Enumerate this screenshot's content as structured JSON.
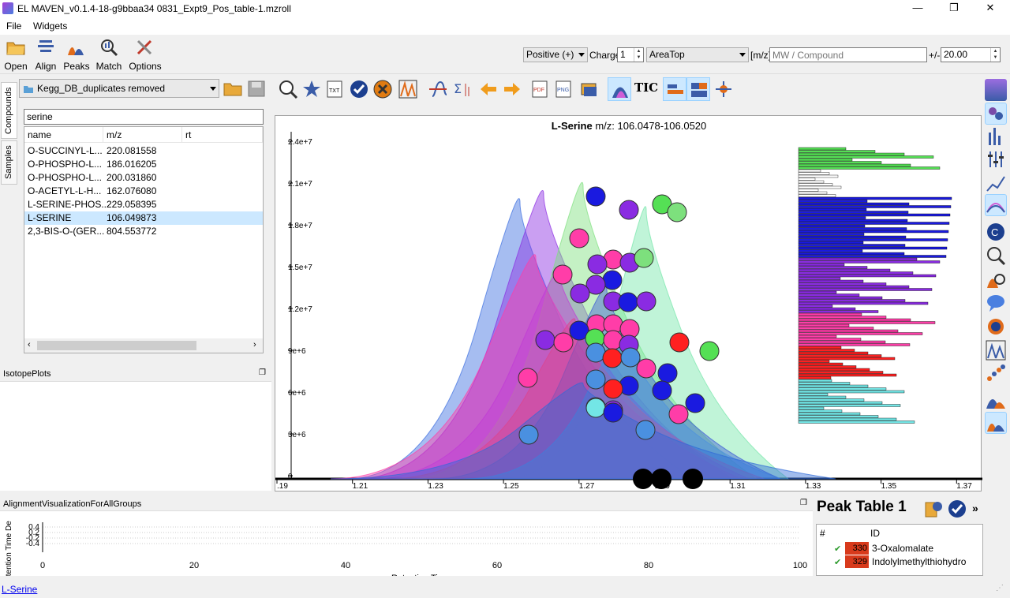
{
  "window": {
    "title": "EL MAVEN_v0.1.4-18-g9bbaa34 0831_Expt9_Pos_table-1.mzroll",
    "min": "—",
    "restore": "❐",
    "close": "✕"
  },
  "menu": [
    "File",
    "Widgets"
  ],
  "toolbar": {
    "buttons": [
      "Open",
      "Align",
      "Peaks",
      "Match",
      "Options"
    ]
  },
  "controls": {
    "polarity": "Positive (+)",
    "charge_label": "Charge",
    "charge_value": "1",
    "quant_type": "AreaTop",
    "mz_label": "[m/z]",
    "search_placeholder": "MW / Compound",
    "tol_label": "+/-",
    "tol_value": "20.00"
  },
  "left": {
    "tabs": [
      "Compounds",
      "Samples"
    ],
    "database": "Kegg_DB_duplicates removed",
    "filter_value": "serine",
    "columns": [
      "name",
      "m/z",
      "rt"
    ],
    "rows": [
      {
        "name": "O-SUCCINYL-L...",
        "mz": "220.081558"
      },
      {
        "name": "O-PHOSPHO-L...",
        "mz": "186.016205"
      },
      {
        "name": "O-PHOSPHO-L...",
        "mz": "200.031860"
      },
      {
        "name": "O-ACETYL-L-H...",
        "mz": "162.076080"
      },
      {
        "name": "L-SERINE-PHOS...",
        "mz": "229.058395"
      },
      {
        "name": "L-SERINE",
        "mz": "106.049873"
      },
      {
        "name": "2,3-BIS-O-(GER...",
        "mz": "804.553772"
      }
    ],
    "selected_index": 5
  },
  "isotope": {
    "title": "IsotopePlots"
  },
  "eic": {
    "title_compound": "L-Serine",
    "title_range": " m/z: 106.0478-106.0520",
    "tic_label": "TIC",
    "y_ticks": [
      "2.4e+7",
      "2.1e+7",
      "1.8e+7",
      "1.5e+7",
      "1.2e+7",
      "9e+6",
      "6e+6",
      "3e+6",
      "0"
    ],
    "x_ticks": [
      ".19",
      "1.21",
      "1.23",
      "1.25",
      "1.27",
      "1.29",
      "1.31",
      "1.33",
      "1.35",
      "1.37"
    ]
  },
  "alignment": {
    "title": "AlignmentVisualizationForAllGroups",
    "y_label": "etention Time De",
    "y_ticks": [
      "0.4",
      "0.2",
      "-0.2",
      "-0.4"
    ],
    "x_ticks": [
      "0",
      "20",
      "40",
      "60",
      "80",
      "100"
    ],
    "x_label": "Retention Time"
  },
  "peak_table": {
    "title": "Peak Table 1",
    "more": "»",
    "columns": [
      "#",
      "ID"
    ],
    "rows": [
      {
        "num": "330",
        "id": "3-Oxalomalate"
      },
      {
        "num": "329",
        "id": "Indolylmethylthiohydro"
      }
    ]
  },
  "status": {
    "link": "L-Serine"
  },
  "colors": {
    "accent_selected": "#cce8ff",
    "peak_red": "#d83a1c",
    "check_green": "#2e9b2e"
  }
}
